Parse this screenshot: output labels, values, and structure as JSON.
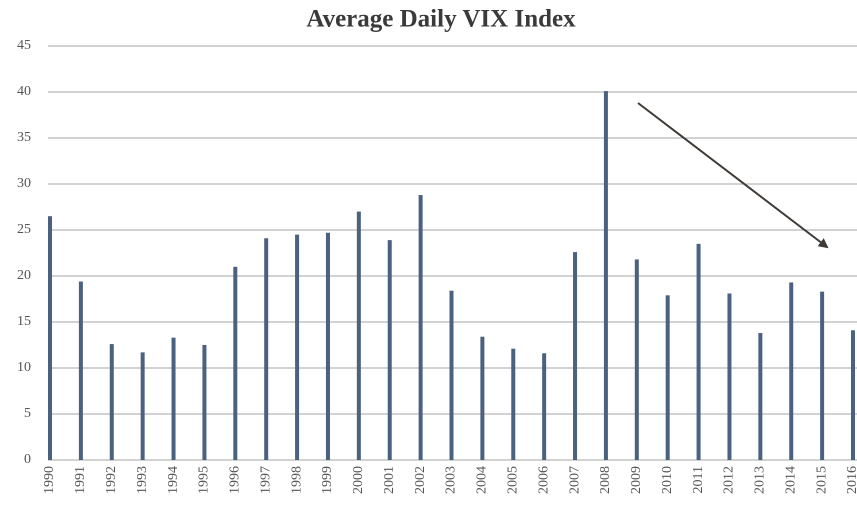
{
  "chart_data": {
    "type": "bar",
    "title": "Average Daily VIX Index",
    "categories": [
      "1990",
      "1991",
      "1992",
      "1993",
      "1994",
      "1995",
      "1996",
      "1997",
      "1998",
      "1999",
      "2000",
      "2001",
      "2002",
      "2003",
      "2004",
      "2005",
      "2006",
      "2007",
      "2008",
      "2009",
      "2010",
      "2011",
      "2012",
      "2013",
      "2014",
      "2015",
      "2016"
    ],
    "values": [
      26.5,
      19.4,
      12.6,
      11.7,
      13.3,
      12.5,
      21.0,
      24.1,
      24.5,
      24.7,
      27.0,
      23.9,
      28.8,
      18.4,
      13.4,
      12.1,
      11.6,
      22.6,
      40.1,
      21.8,
      17.9,
      23.5,
      18.1,
      13.8,
      19.3,
      18.3,
      14.1
    ],
    "color": "#4b6180",
    "ylim": [
      0,
      45
    ],
    "yticks": [
      0,
      5,
      10,
      15,
      20,
      25,
      30,
      35,
      40,
      45
    ],
    "grid": true
  }
}
